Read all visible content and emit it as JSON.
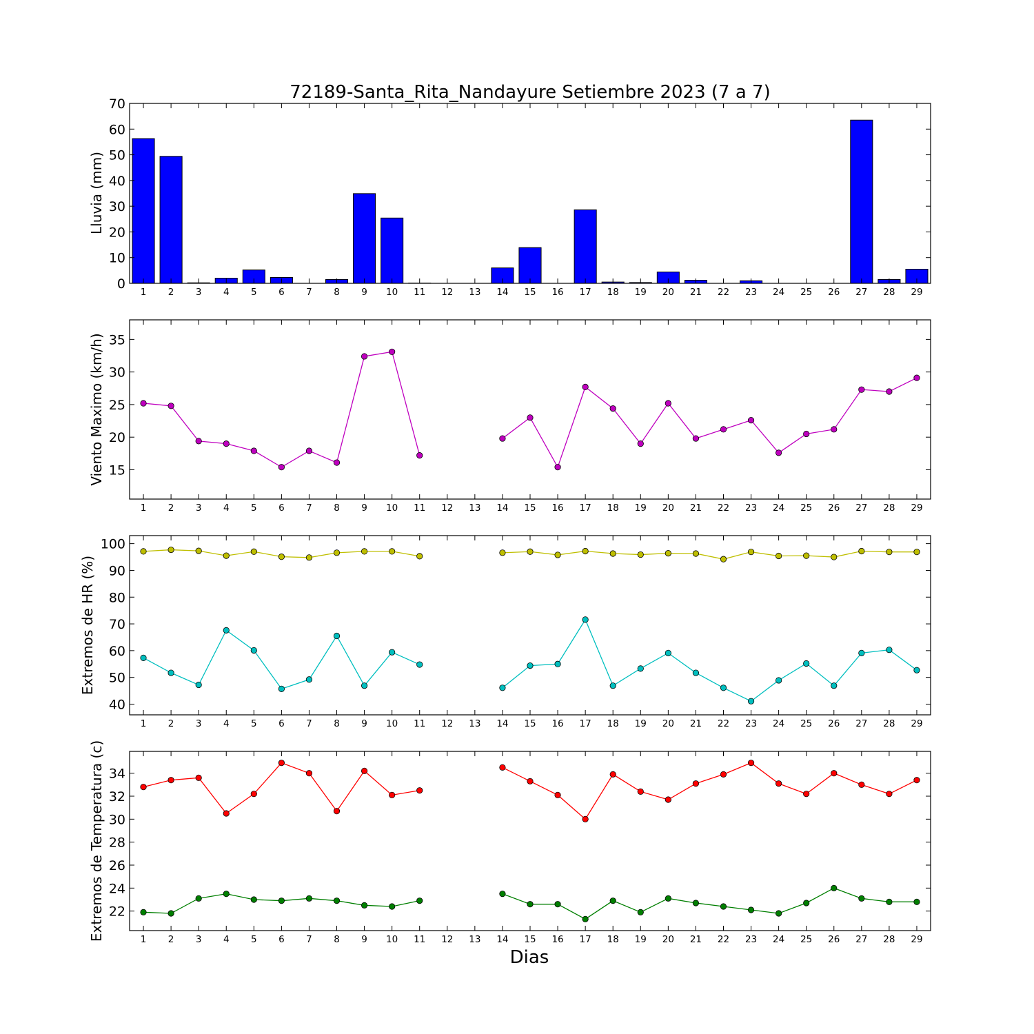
{
  "chart_data": [
    {
      "type": "bar",
      "title": "72189-Santa_Rita_Nandayure Setiembre 2023  (7 a 7)",
      "xlabel": "",
      "ylabel": "Lluvia (mm)",
      "ylim": [
        0,
        70
      ],
      "yticks": [
        0,
        10,
        20,
        30,
        40,
        50,
        60,
        70
      ],
      "categories": [
        1,
        2,
        3,
        4,
        5,
        6,
        7,
        8,
        9,
        10,
        11,
        12,
        13,
        14,
        15,
        16,
        17,
        18,
        19,
        20,
        21,
        22,
        23,
        24,
        25,
        26,
        27,
        28,
        29
      ],
      "values": [
        56.3,
        49.4,
        0.2,
        2.0,
        5.2,
        2.3,
        0.0,
        1.5,
        34.9,
        25.4,
        0.1,
        0.0,
        0.0,
        6.0,
        13.9,
        0.0,
        28.6,
        0.5,
        0.3,
        4.4,
        1.2,
        0.0,
        1.0,
        0.0,
        0.0,
        0.0,
        63.5,
        1.5,
        5.5
      ],
      "color": "#0000ff",
      "grid": false
    },
    {
      "type": "line",
      "xlabel": "",
      "ylabel": "Viento Maximo (km/h)",
      "ylim": [
        10.5,
        38
      ],
      "yticks": [
        15,
        20,
        25,
        30,
        35
      ],
      "x": [
        1,
        2,
        3,
        4,
        5,
        6,
        7,
        8,
        9,
        10,
        11,
        12,
        13,
        14,
        15,
        16,
        17,
        18,
        19,
        20,
        21,
        22,
        23,
        24,
        25,
        26,
        27,
        28,
        29
      ],
      "series": [
        {
          "values": [
            25.2,
            24.8,
            19.4,
            19.0,
            17.9,
            15.4,
            17.9,
            16.1,
            32.4,
            33.1,
            17.2,
            null,
            null,
            19.8,
            23.0,
            15.4,
            27.7,
            24.4,
            19.0,
            25.2,
            19.8,
            21.2,
            22.6,
            17.6,
            20.5,
            21.2,
            27.3,
            27.0,
            29.1
          ],
          "color": "#bf00bf"
        }
      ],
      "grid": false
    },
    {
      "type": "line",
      "xlabel": "",
      "ylabel": "Extremos de HR (%)",
      "ylim": [
        36,
        103
      ],
      "yticks": [
        40,
        50,
        60,
        70,
        80,
        90,
        100
      ],
      "x": [
        1,
        2,
        3,
        4,
        5,
        6,
        7,
        8,
        9,
        10,
        11,
        12,
        13,
        14,
        15,
        16,
        17,
        18,
        19,
        20,
        21,
        22,
        23,
        24,
        25,
        26,
        27,
        28,
        29
      ],
      "series": [
        {
          "values": [
            97.1,
            97.7,
            97.3,
            95.5,
            97.0,
            95.1,
            94.8,
            96.6,
            97.1,
            97.1,
            95.3,
            null,
            null,
            96.6,
            97.0,
            95.8,
            97.2,
            96.3,
            95.9,
            96.4,
            96.3,
            94.2,
            96.9,
            95.4,
            95.5,
            95.0,
            97.2,
            96.9,
            96.9
          ],
          "color": "#bfbf00"
        },
        {
          "values": [
            57.3,
            51.7,
            47.2,
            67.6,
            60.1,
            45.7,
            49.2,
            65.5,
            46.9,
            59.4,
            54.8,
            null,
            null,
            46.1,
            54.4,
            55.0,
            71.6,
            46.9,
            53.3,
            59.1,
            51.7,
            46.1,
            41.1,
            48.9,
            55.2,
            46.9,
            59.1,
            60.3,
            52.7
          ],
          "color": "#00bfbf"
        }
      ],
      "grid": false
    },
    {
      "type": "line",
      "xlabel": "Dias",
      "ylabel": "Extremos de Temperatura (c)",
      "ylim": [
        20.3,
        35.9
      ],
      "yticks": [
        22,
        24,
        26,
        28,
        30,
        32,
        34
      ],
      "x": [
        1,
        2,
        3,
        4,
        5,
        6,
        7,
        8,
        9,
        10,
        11,
        12,
        13,
        14,
        15,
        16,
        17,
        18,
        19,
        20,
        21,
        22,
        23,
        24,
        25,
        26,
        27,
        28,
        29
      ],
      "series": [
        {
          "values": [
            32.8,
            33.4,
            33.6,
            30.5,
            32.2,
            34.9,
            34.0,
            30.7,
            34.2,
            32.1,
            32.5,
            null,
            null,
            34.5,
            33.3,
            32.1,
            30.0,
            33.9,
            32.4,
            31.7,
            33.1,
            33.9,
            34.9,
            33.1,
            32.2,
            34.0,
            33.0,
            32.2,
            33.4
          ],
          "color": "#ff0000"
        },
        {
          "values": [
            21.9,
            21.8,
            23.1,
            23.5,
            23.0,
            22.9,
            23.1,
            22.9,
            22.5,
            22.4,
            22.9,
            null,
            null,
            23.5,
            22.6,
            22.6,
            21.3,
            22.9,
            21.9,
            23.1,
            22.7,
            22.4,
            22.1,
            21.8,
            22.7,
            24.0,
            23.1,
            22.8,
            22.8
          ],
          "color": "#007f00"
        }
      ],
      "grid": false
    }
  ]
}
